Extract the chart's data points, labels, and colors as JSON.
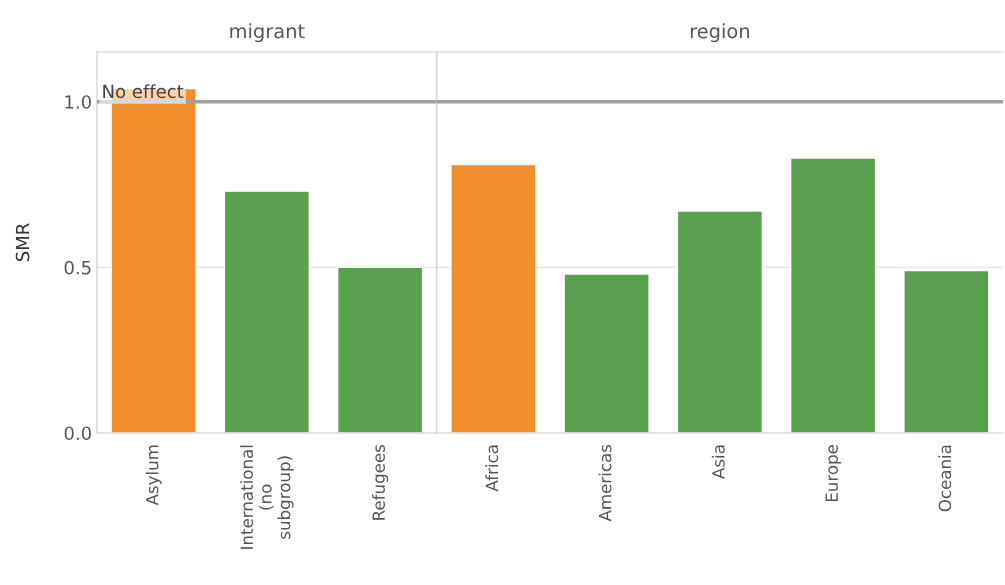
{
  "chart_data": [
    {
      "type": "bar",
      "title": "migrant",
      "ylabel": "SMR",
      "categories": [
        "Asylum",
        "International\n(no\nsubgroup)",
        "Refugees"
      ],
      "values": [
        1.04,
        0.73,
        0.5
      ],
      "colors": [
        "#f28e2b",
        "#59a14f",
        "#59a14f"
      ],
      "ylim": [
        0,
        1.15
      ],
      "yticks": [
        {
          "value": 0,
          "label": "0.0"
        },
        {
          "value": 0.5,
          "label": "0.5"
        },
        {
          "value": 1,
          "label": "1.0"
        }
      ],
      "ref_lines": [
        {
          "axis": "y",
          "value": 1,
          "label": "No effect",
          "color": "#a0a0a0"
        },
        {
          "axis": "y",
          "value": 0.5,
          "color": "#e8e8e8"
        }
      ]
    },
    {
      "type": "bar",
      "title": "region",
      "categories": [
        "Africa",
        "Americas",
        "Asia",
        "Europe",
        "Oceania"
      ],
      "values": [
        0.81,
        0.48,
        0.67,
        0.83,
        0.49
      ],
      "colors": [
        "#f28e2b",
        "#59a14f",
        "#59a14f",
        "#59a14f",
        "#59a14f"
      ],
      "ylim": [
        0,
        1.15
      ],
      "yticks": [
        {
          "value": 0,
          "label": null
        },
        {
          "value": 0.5,
          "label": null
        },
        {
          "value": 1,
          "label": null
        }
      ],
      "tick_labels": "x",
      "ref_lines": [
        {
          "axis": "y",
          "value": 1,
          "color": "#a0a0a0"
        },
        {
          "axis": "y",
          "value": 0.5,
          "color": "#e8e8e8"
        }
      ]
    }
  ]
}
